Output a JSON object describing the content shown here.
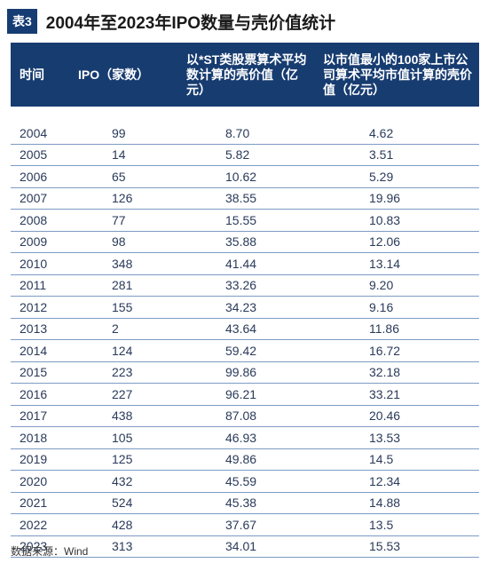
{
  "header": {
    "badge": "表3",
    "title": "2004年至2023年IPO数量与壳价值统计"
  },
  "table": {
    "columns": [
      "时间",
      "IPO（家数）",
      "以*ST类股票算术平均数计算的壳价值（亿元）",
      "以市值最小的100家上市公司算术平均市值计算的壳价值（亿元）"
    ],
    "rows": [
      [
        "2004",
        "99",
        "8.70",
        "4.62"
      ],
      [
        "2005",
        "14",
        "5.82",
        "3.51"
      ],
      [
        "2006",
        "65",
        "10.62",
        "5.29"
      ],
      [
        "2007",
        "126",
        "38.55",
        "19.96"
      ],
      [
        "2008",
        "77",
        "15.55",
        "10.83"
      ],
      [
        "2009",
        "98",
        "35.88",
        "12.06"
      ],
      [
        "2010",
        "348",
        "41.44",
        "13.14"
      ],
      [
        "2011",
        "281",
        "33.26",
        "9.20"
      ],
      [
        "2012",
        "155",
        "34.23",
        "9.16"
      ],
      [
        "2013",
        "2",
        "43.64",
        "11.86"
      ],
      [
        "2014",
        "124",
        "59.42",
        "16.72"
      ],
      [
        "2015",
        "223",
        "99.86",
        "32.18"
      ],
      [
        "2016",
        "227",
        "96.21",
        "33.21"
      ],
      [
        "2017",
        "438",
        "87.08",
        "20.46"
      ],
      [
        "2018",
        "105",
        "46.93",
        "13.53"
      ],
      [
        "2019",
        "125",
        "49.86",
        "14.5"
      ],
      [
        "2020",
        "432",
        "45.59",
        "12.34"
      ],
      [
        "2021",
        "524",
        "45.38",
        "14.88"
      ],
      [
        "2022",
        "428",
        "37.67",
        "13.5"
      ],
      [
        "2023",
        "313",
        "34.01",
        "15.53"
      ]
    ]
  },
  "source": "数据来源：Wind"
}
